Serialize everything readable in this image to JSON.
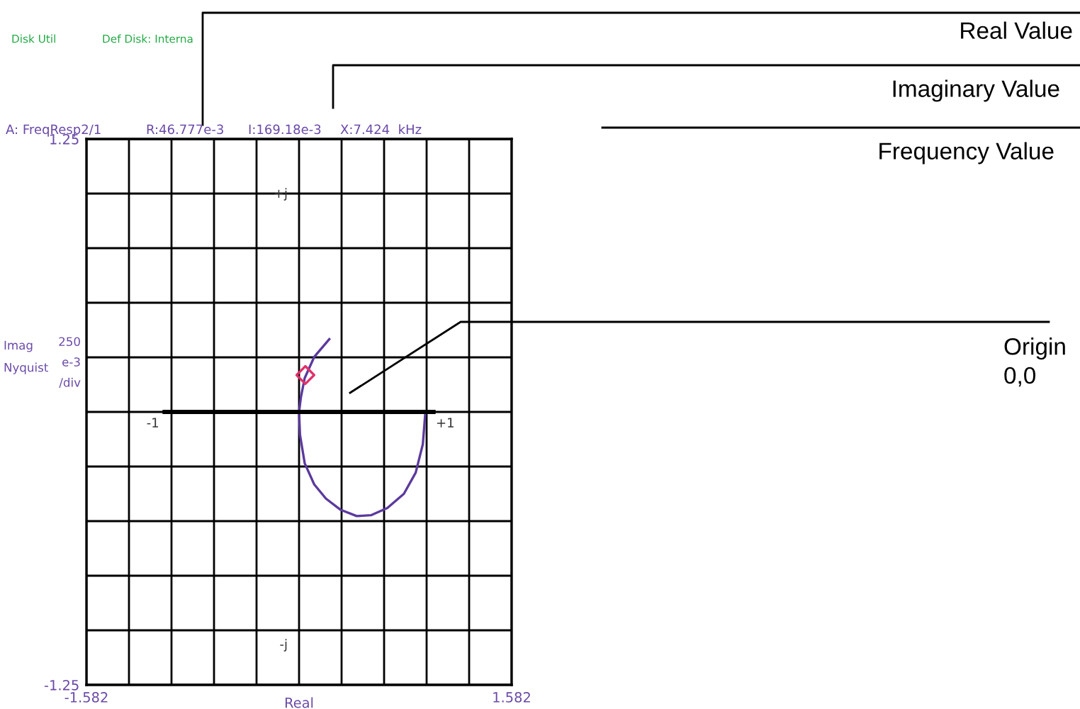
{
  "chart_data": {
    "type": "line",
    "xlabel": "Real",
    "ylabel": "Imag\nNyquist",
    "xlim": [
      -1.582,
      1.582
    ],
    "ylim": [
      -1.25,
      1.25
    ],
    "xticks": [
      -1.582,
      {
        "value": -1.2656,
        "label": null
      },
      {
        "value": -0.9492,
        "label": null
      },
      {
        "value": -0.6328,
        "label": null
      },
      {
        "value": -0.3164,
        "label": null
      },
      {
        "value": 0,
        "label": null
      },
      {
        "value": 0.3164,
        "label": null
      },
      {
        "value": 0.6328,
        "label": null
      },
      {
        "value": 0.9492,
        "label": null
      },
      {
        "value": 1.2656,
        "label": null
      },
      1.582
    ],
    "yticks": [
      -1.25,
      {
        "value": -1.0,
        "label": null
      },
      {
        "value": -0.75,
        "label": null
      },
      {
        "value": -0.5,
        "label": null
      },
      {
        "value": -0.25,
        "label": null
      },
      {
        "value": 0,
        "label": null
      },
      {
        "value": 0.25,
        "label": null
      },
      {
        "value": 0.5,
        "label": null
      },
      {
        "value": 0.75,
        "label": null
      },
      {
        "value": 1.0,
        "label": null
      },
      1.25
    ],
    "grid": true,
    "legend": false,
    "series": [
      {
        "color": "#5b3a9e",
        "marker": "none",
        "x": [
          0.225,
          0.113,
          0.042,
          0.014,
          0.0,
          0.007,
          0.042,
          0.113,
          0.2,
          0.306,
          0.429,
          0.535,
          0.657,
          0.78,
          0.868,
          0.921,
          0.939
        ],
        "values": [
          0.333,
          0.252,
          0.155,
          0.068,
          0.0,
          -0.105,
          -0.235,
          -0.332,
          -0.397,
          -0.447,
          -0.477,
          -0.473,
          -0.44,
          -0.375,
          -0.278,
          -0.148,
          -0.008
        ]
      },
      {
        "color": "#000000",
        "marker": "none",
        "x": [
          -1,
          1
        ],
        "values": [
          0,
          0
        ]
      },
      {
        "type": "scatter",
        "color": "#e0306a",
        "marker": "diamond",
        "x": [
          0.047
        ],
        "values": [
          0.169
        ]
      }
    ],
    "annotations": [
      "Disk Util",
      "Def Disk: Interna",
      "A: FreqResp2/1",
      "R:46.777e-3",
      "I:169.18e-3",
      "X:7.424  kHz",
      "250\ne-3\n/div",
      "Real Value",
      "Imaginary Value",
      "Frequency Value",
      "Origin\n0,0",
      {
        "text": "-1",
        "x": -1,
        "y": 0
      },
      {
        "text": "+1",
        "x": 1,
        "y": 0
      },
      "+j",
      "-j"
    ]
  }
}
